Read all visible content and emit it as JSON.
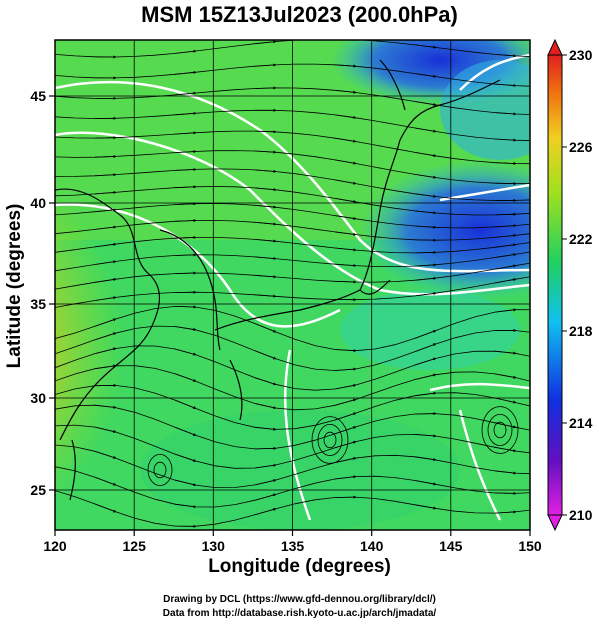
{
  "title": "MSM 15Z13Jul2023 (200.0hPa)",
  "xlabel": "Longitude (degrees)",
  "ylabel": "Latitude  (degrees)",
  "x_ticks": [
    "120",
    "125",
    "130",
    "135",
    "140",
    "145",
    "150"
  ],
  "y_ticks": [
    "25",
    "30",
    "35",
    "40",
    "45"
  ],
  "colorbar_ticks": [
    "230",
    "226",
    "222",
    "218",
    "214",
    "210"
  ],
  "credit_line1": "Drawing by DCL (https://www.gfd-dennou.org/library/dcl/)",
  "credit_line2": "Data from http://database.rish.kyoto-u.ac.jp/arch/jmadata/",
  "colors": {
    "cold": "#2040d0",
    "cool": "#20d0e0",
    "mid": "#30d040",
    "warm": "#d8e020",
    "hot": "#f0a020"
  },
  "map": {
    "lon_range": [
      120,
      150
    ],
    "lat_range": [
      22.4,
      47.6
    ],
    "field": "temperature (K)",
    "value_range": [
      210,
      230
    ]
  }
}
